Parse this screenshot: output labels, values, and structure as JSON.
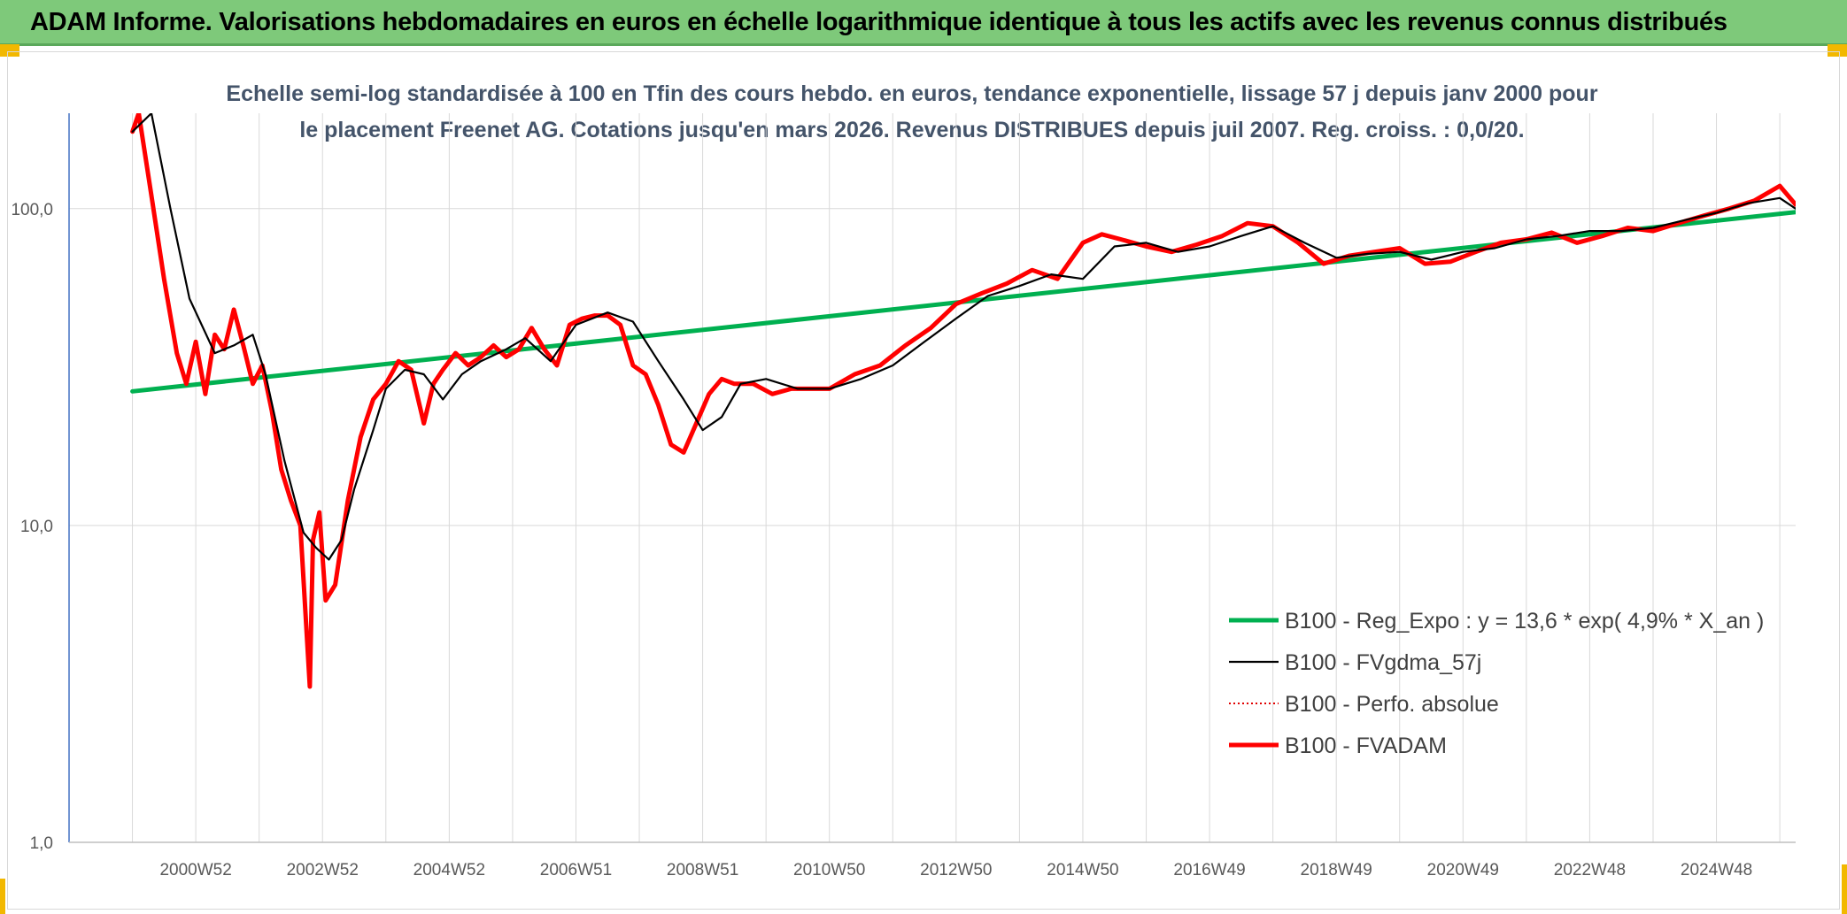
{
  "header": {
    "title": "ADAM Informe. Valorisations hebdomadaires en euros en échelle logarithmique identique à tous les actifs avec les revenus connus distribués"
  },
  "chart_data": {
    "type": "line",
    "title": "Echelle semi-log standardisée à 100 en Tfin des cours hebdo. en euros, tendance exponentielle, lissage 57 j depuis janv 2000 pour le placement Freenet AG. Cotations jusqu'en mars 2026. Revenus DISTRIBUES depuis juil 2007. Reg. croiss. : 0,0/20.",
    "y_scale": "log",
    "ylim": [
      1,
      200
    ],
    "xlim": [
      1999.0,
      2026.25
    ],
    "y_ticks": [
      {
        "value": 100,
        "label": "100,0"
      },
      {
        "value": 10,
        "label": "10,0"
      },
      {
        "value": 1,
        "label": "1,0"
      }
    ],
    "x_ticks": [
      {
        "value": 2001.0,
        "label": "2000W52"
      },
      {
        "value": 2003.0,
        "label": "2002W52"
      },
      {
        "value": 2005.0,
        "label": "2004W52"
      },
      {
        "value": 2007.0,
        "label": "2006W51"
      },
      {
        "value": 2009.0,
        "label": "2008W51"
      },
      {
        "value": 2011.0,
        "label": "2010W50"
      },
      {
        "value": 2013.0,
        "label": "2012W50"
      },
      {
        "value": 2015.0,
        "label": "2014W50"
      },
      {
        "value": 2017.0,
        "label": "2016W49"
      },
      {
        "value": 2019.0,
        "label": "2018W49"
      },
      {
        "value": 2021.0,
        "label": "2020W49"
      },
      {
        "value": 2023.0,
        "label": "2022W48"
      },
      {
        "value": 2025.0,
        "label": "2024W48"
      }
    ],
    "grid": true,
    "legend_position": "bottom-right",
    "series": [
      {
        "name": "B100 - Reg_Expo : y = 13,6 * exp( 4,9% *  X_an )",
        "color": "#00b050",
        "style": "thick",
        "x": [
          2000.0,
          2026.25
        ],
        "values": [
          26.5,
          97.5
        ]
      },
      {
        "name": "B100 - FVgdma_57j",
        "color": "#000000",
        "style": "thin",
        "x": [
          2000.0,
          2000.3,
          2000.6,
          2000.9,
          2001.3,
          2001.6,
          2001.9,
          2002.1,
          2002.4,
          2002.7,
          2002.9,
          2003.1,
          2003.3,
          2003.5,
          2003.8,
          2004.0,
          2004.3,
          2004.6,
          2004.9,
          2005.2,
          2005.5,
          2005.9,
          2006.2,
          2006.6,
          2007.0,
          2007.5,
          2007.9,
          2008.3,
          2008.7,
          2009.0,
          2009.3,
          2009.6,
          2010.0,
          2010.5,
          2011.0,
          2011.5,
          2012.0,
          2012.5,
          2013.0,
          2013.5,
          2014.0,
          2014.5,
          2015.0,
          2015.5,
          2016.0,
          2016.5,
          2017.0,
          2017.5,
          2018.0,
          2018.5,
          2019.0,
          2019.5,
          2020.0,
          2020.5,
          2021.0,
          2021.5,
          2022.0,
          2022.5,
          2023.0,
          2023.5,
          2024.0,
          2024.5,
          2025.0,
          2025.5,
          2026.0,
          2026.25
        ],
        "values": [
          175,
          200,
          100,
          52,
          35,
          37,
          40,
          30,
          16,
          9.5,
          8.5,
          7.8,
          9.0,
          13,
          20,
          27,
          31,
          30,
          25,
          30,
          33,
          36,
          39,
          33,
          43,
          47,
          44,
          33,
          25,
          20,
          22,
          28,
          29,
          27,
          27,
          29,
          32,
          38,
          45,
          53,
          57,
          62,
          60,
          76,
          78,
          73,
          76,
          82,
          88,
          78,
          70,
          72,
          73,
          69,
          73,
          75,
          80,
          82,
          85,
          85,
          87,
          92,
          97,
          104,
          108,
          100
        ]
      },
      {
        "name": "B100 - Perfo. absolue",
        "color": "#e00000",
        "style": "dotted",
        "x": [],
        "values": []
      },
      {
        "name": "B100 - FVADAM",
        "color": "#ff0000",
        "style": "thick",
        "x": [
          2000.0,
          2000.1,
          2000.3,
          2000.5,
          2000.7,
          2000.85,
          2001.0,
          2001.15,
          2001.3,
          2001.45,
          2001.6,
          2001.75,
          2001.9,
          2002.05,
          2002.2,
          2002.35,
          2002.5,
          2002.65,
          2002.8,
          2002.85,
          2002.95,
          2003.05,
          2003.2,
          2003.4,
          2003.6,
          2003.8,
          2004.0,
          2004.2,
          2004.4,
          2004.6,
          2004.75,
          2004.9,
          2005.1,
          2005.3,
          2005.5,
          2005.7,
          2005.9,
          2006.1,
          2006.3,
          2006.5,
          2006.7,
          2006.9,
          2007.1,
          2007.3,
          2007.5,
          2007.7,
          2007.9,
          2008.1,
          2008.3,
          2008.5,
          2008.7,
          2008.9,
          2009.1,
          2009.3,
          2009.5,
          2009.8,
          2010.1,
          2010.4,
          2010.7,
          2011.0,
          2011.4,
          2011.8,
          2012.2,
          2012.6,
          2013.0,
          2013.4,
          2013.8,
          2014.2,
          2014.6,
          2015.0,
          2015.3,
          2015.6,
          2016.0,
          2016.4,
          2016.8,
          2017.2,
          2017.6,
          2018.0,
          2018.4,
          2018.8,
          2019.2,
          2019.6,
          2020.0,
          2020.4,
          2020.8,
          2021.2,
          2021.6,
          2022.0,
          2022.4,
          2022.8,
          2023.2,
          2023.6,
          2024.0,
          2024.4,
          2024.8,
          2025.2,
          2025.6,
          2026.0,
          2026.25
        ],
        "values": [
          175,
          200,
          110,
          60,
          35,
          28,
          38,
          26,
          40,
          36,
          48,
          37,
          28,
          32,
          23,
          15,
          12,
          10,
          3.1,
          9,
          11,
          5.8,
          6.5,
          12,
          19,
          25,
          28,
          33,
          31,
          21,
          28,
          31,
          35,
          32,
          34,
          37,
          34,
          36,
          42,
          36,
          32,
          43,
          45,
          46,
          46,
          43,
          32,
          30,
          24,
          18,
          17,
          21,
          26,
          29,
          28,
          28,
          26,
          27,
          27,
          27,
          30,
          32,
          37,
          42,
          50,
          54,
          58,
          64,
          60,
          78,
          83,
          80,
          76,
          73,
          77,
          82,
          90,
          88,
          78,
          67,
          71,
          73,
          75,
          67,
          68,
          73,
          78,
          80,
          84,
          78,
          82,
          87,
          85,
          90,
          95,
          100,
          106,
          118,
          103
        ]
      }
    ]
  }
}
